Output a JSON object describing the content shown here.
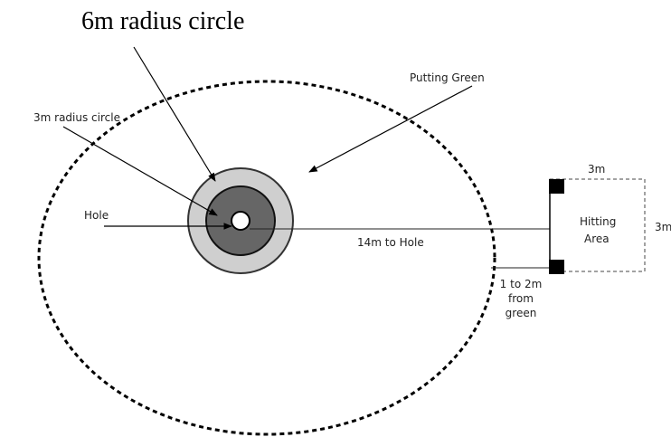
{
  "labels": {
    "big_circle": "6m radius circle",
    "putting_green": "Putting Green",
    "small_circle": "3m radius circle",
    "hole": "Hole",
    "distance": "14m to Hole",
    "width": "3m",
    "depth": "3m",
    "hitting_area": [
      "Hitting",
      "Area"
    ],
    "offset": [
      "1 to 2m",
      "from",
      "green"
    ]
  }
}
